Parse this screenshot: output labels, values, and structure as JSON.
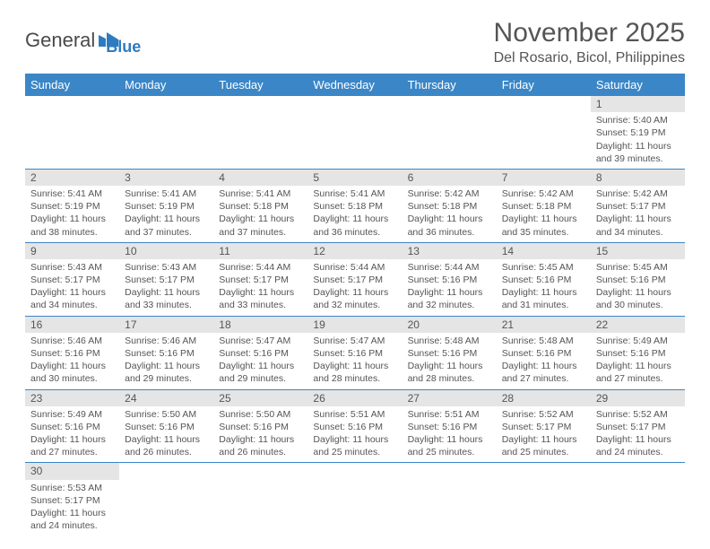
{
  "logo": {
    "text1": "General",
    "text2": "Blue"
  },
  "title": "November 2025",
  "location": "Del Rosario, Bicol, Philippines",
  "colors": {
    "header_bg": "#3b86c6",
    "header_text": "#ffffff",
    "daynum_bg": "#e5e5e5",
    "border": "#3b86c6",
    "text": "#555555",
    "logo_blue": "#2f7bbf"
  },
  "weekdays": [
    "Sunday",
    "Monday",
    "Tuesday",
    "Wednesday",
    "Thursday",
    "Friday",
    "Saturday"
  ],
  "first_day_index": 6,
  "days": [
    {
      "n": 1,
      "sunrise": "5:40 AM",
      "sunset": "5:19 PM",
      "dl": "11 hours and 39 minutes."
    },
    {
      "n": 2,
      "sunrise": "5:41 AM",
      "sunset": "5:19 PM",
      "dl": "11 hours and 38 minutes."
    },
    {
      "n": 3,
      "sunrise": "5:41 AM",
      "sunset": "5:19 PM",
      "dl": "11 hours and 37 minutes."
    },
    {
      "n": 4,
      "sunrise": "5:41 AM",
      "sunset": "5:18 PM",
      "dl": "11 hours and 37 minutes."
    },
    {
      "n": 5,
      "sunrise": "5:41 AM",
      "sunset": "5:18 PM",
      "dl": "11 hours and 36 minutes."
    },
    {
      "n": 6,
      "sunrise": "5:42 AM",
      "sunset": "5:18 PM",
      "dl": "11 hours and 36 minutes."
    },
    {
      "n": 7,
      "sunrise": "5:42 AM",
      "sunset": "5:18 PM",
      "dl": "11 hours and 35 minutes."
    },
    {
      "n": 8,
      "sunrise": "5:42 AM",
      "sunset": "5:17 PM",
      "dl": "11 hours and 34 minutes."
    },
    {
      "n": 9,
      "sunrise": "5:43 AM",
      "sunset": "5:17 PM",
      "dl": "11 hours and 34 minutes."
    },
    {
      "n": 10,
      "sunrise": "5:43 AM",
      "sunset": "5:17 PM",
      "dl": "11 hours and 33 minutes."
    },
    {
      "n": 11,
      "sunrise": "5:44 AM",
      "sunset": "5:17 PM",
      "dl": "11 hours and 33 minutes."
    },
    {
      "n": 12,
      "sunrise": "5:44 AM",
      "sunset": "5:17 PM",
      "dl": "11 hours and 32 minutes."
    },
    {
      "n": 13,
      "sunrise": "5:44 AM",
      "sunset": "5:16 PM",
      "dl": "11 hours and 32 minutes."
    },
    {
      "n": 14,
      "sunrise": "5:45 AM",
      "sunset": "5:16 PM",
      "dl": "11 hours and 31 minutes."
    },
    {
      "n": 15,
      "sunrise": "5:45 AM",
      "sunset": "5:16 PM",
      "dl": "11 hours and 30 minutes."
    },
    {
      "n": 16,
      "sunrise": "5:46 AM",
      "sunset": "5:16 PM",
      "dl": "11 hours and 30 minutes."
    },
    {
      "n": 17,
      "sunrise": "5:46 AM",
      "sunset": "5:16 PM",
      "dl": "11 hours and 29 minutes."
    },
    {
      "n": 18,
      "sunrise": "5:47 AM",
      "sunset": "5:16 PM",
      "dl": "11 hours and 29 minutes."
    },
    {
      "n": 19,
      "sunrise": "5:47 AM",
      "sunset": "5:16 PM",
      "dl": "11 hours and 28 minutes."
    },
    {
      "n": 20,
      "sunrise": "5:48 AM",
      "sunset": "5:16 PM",
      "dl": "11 hours and 28 minutes."
    },
    {
      "n": 21,
      "sunrise": "5:48 AM",
      "sunset": "5:16 PM",
      "dl": "11 hours and 27 minutes."
    },
    {
      "n": 22,
      "sunrise": "5:49 AM",
      "sunset": "5:16 PM",
      "dl": "11 hours and 27 minutes."
    },
    {
      "n": 23,
      "sunrise": "5:49 AM",
      "sunset": "5:16 PM",
      "dl": "11 hours and 27 minutes."
    },
    {
      "n": 24,
      "sunrise": "5:50 AM",
      "sunset": "5:16 PM",
      "dl": "11 hours and 26 minutes."
    },
    {
      "n": 25,
      "sunrise": "5:50 AM",
      "sunset": "5:16 PM",
      "dl": "11 hours and 26 minutes."
    },
    {
      "n": 26,
      "sunrise": "5:51 AM",
      "sunset": "5:16 PM",
      "dl": "11 hours and 25 minutes."
    },
    {
      "n": 27,
      "sunrise": "5:51 AM",
      "sunset": "5:16 PM",
      "dl": "11 hours and 25 minutes."
    },
    {
      "n": 28,
      "sunrise": "5:52 AM",
      "sunset": "5:17 PM",
      "dl": "11 hours and 25 minutes."
    },
    {
      "n": 29,
      "sunrise": "5:52 AM",
      "sunset": "5:17 PM",
      "dl": "11 hours and 24 minutes."
    },
    {
      "n": 30,
      "sunrise": "5:53 AM",
      "sunset": "5:17 PM",
      "dl": "11 hours and 24 minutes."
    }
  ],
  "labels": {
    "sunrise": "Sunrise:",
    "sunset": "Sunset:",
    "daylight": "Daylight:"
  }
}
